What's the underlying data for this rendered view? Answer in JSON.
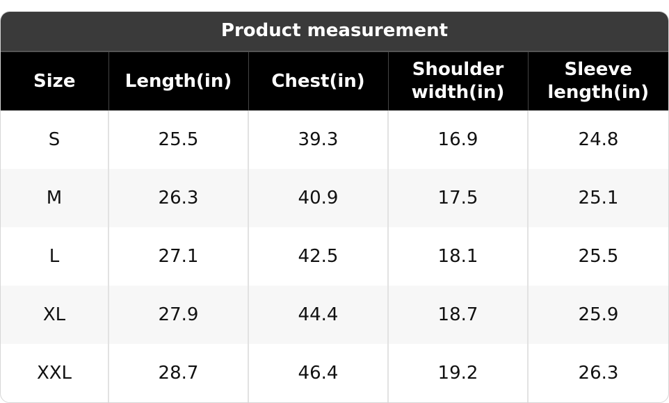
{
  "header": {
    "title": "Product measurement"
  },
  "table": {
    "columns": [
      "Size",
      "Length(in)",
      "Chest(in)",
      "Shoulder width(in)",
      "Sleeve length(in)"
    ],
    "rows": [
      [
        "S",
        25.5,
        39.3,
        16.9,
        24.8
      ],
      [
        "M",
        26.3,
        40.9,
        17.5,
        25.1
      ],
      [
        "L",
        27.1,
        42.5,
        18.1,
        25.5
      ],
      [
        "XL",
        27.9,
        44.4,
        18.7,
        25.9
      ],
      [
        "XXL",
        28.7,
        46.4,
        19.2,
        26.3
      ]
    ]
  }
}
